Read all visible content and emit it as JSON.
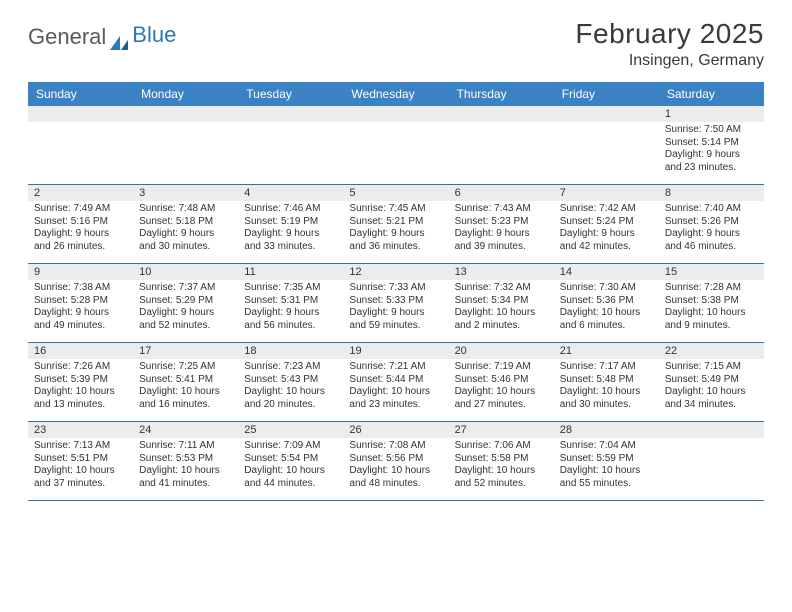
{
  "logo": {
    "part1": "General",
    "part2": "Blue"
  },
  "title": "February 2025",
  "location": "Insingen, Germany",
  "colors": {
    "header_bg": "#3b82c4",
    "header_text": "#ffffff",
    "daynum_bg": "#ececec",
    "week_border": "#3b6fa0",
    "text": "#333333",
    "logo_gray": "#5a5a5a",
    "logo_blue": "#2e77b8",
    "page_bg": "#ffffff"
  },
  "day_names": [
    "Sunday",
    "Monday",
    "Tuesday",
    "Wednesday",
    "Thursday",
    "Friday",
    "Saturday"
  ],
  "weeks": [
    [
      {
        "n": "",
        "sr": "",
        "ss": "",
        "dl": ""
      },
      {
        "n": "",
        "sr": "",
        "ss": "",
        "dl": ""
      },
      {
        "n": "",
        "sr": "",
        "ss": "",
        "dl": ""
      },
      {
        "n": "",
        "sr": "",
        "ss": "",
        "dl": ""
      },
      {
        "n": "",
        "sr": "",
        "ss": "",
        "dl": ""
      },
      {
        "n": "",
        "sr": "",
        "ss": "",
        "dl": ""
      },
      {
        "n": "1",
        "sr": "Sunrise: 7:50 AM",
        "ss": "Sunset: 5:14 PM",
        "dl": "Daylight: 9 hours and 23 minutes."
      }
    ],
    [
      {
        "n": "2",
        "sr": "Sunrise: 7:49 AM",
        "ss": "Sunset: 5:16 PM",
        "dl": "Daylight: 9 hours and 26 minutes."
      },
      {
        "n": "3",
        "sr": "Sunrise: 7:48 AM",
        "ss": "Sunset: 5:18 PM",
        "dl": "Daylight: 9 hours and 30 minutes."
      },
      {
        "n": "4",
        "sr": "Sunrise: 7:46 AM",
        "ss": "Sunset: 5:19 PM",
        "dl": "Daylight: 9 hours and 33 minutes."
      },
      {
        "n": "5",
        "sr": "Sunrise: 7:45 AM",
        "ss": "Sunset: 5:21 PM",
        "dl": "Daylight: 9 hours and 36 minutes."
      },
      {
        "n": "6",
        "sr": "Sunrise: 7:43 AM",
        "ss": "Sunset: 5:23 PM",
        "dl": "Daylight: 9 hours and 39 minutes."
      },
      {
        "n": "7",
        "sr": "Sunrise: 7:42 AM",
        "ss": "Sunset: 5:24 PM",
        "dl": "Daylight: 9 hours and 42 minutes."
      },
      {
        "n": "8",
        "sr": "Sunrise: 7:40 AM",
        "ss": "Sunset: 5:26 PM",
        "dl": "Daylight: 9 hours and 46 minutes."
      }
    ],
    [
      {
        "n": "9",
        "sr": "Sunrise: 7:38 AM",
        "ss": "Sunset: 5:28 PM",
        "dl": "Daylight: 9 hours and 49 minutes."
      },
      {
        "n": "10",
        "sr": "Sunrise: 7:37 AM",
        "ss": "Sunset: 5:29 PM",
        "dl": "Daylight: 9 hours and 52 minutes."
      },
      {
        "n": "11",
        "sr": "Sunrise: 7:35 AM",
        "ss": "Sunset: 5:31 PM",
        "dl": "Daylight: 9 hours and 56 minutes."
      },
      {
        "n": "12",
        "sr": "Sunrise: 7:33 AM",
        "ss": "Sunset: 5:33 PM",
        "dl": "Daylight: 9 hours and 59 minutes."
      },
      {
        "n": "13",
        "sr": "Sunrise: 7:32 AM",
        "ss": "Sunset: 5:34 PM",
        "dl": "Daylight: 10 hours and 2 minutes."
      },
      {
        "n": "14",
        "sr": "Sunrise: 7:30 AM",
        "ss": "Sunset: 5:36 PM",
        "dl": "Daylight: 10 hours and 6 minutes."
      },
      {
        "n": "15",
        "sr": "Sunrise: 7:28 AM",
        "ss": "Sunset: 5:38 PM",
        "dl": "Daylight: 10 hours and 9 minutes."
      }
    ],
    [
      {
        "n": "16",
        "sr": "Sunrise: 7:26 AM",
        "ss": "Sunset: 5:39 PM",
        "dl": "Daylight: 10 hours and 13 minutes."
      },
      {
        "n": "17",
        "sr": "Sunrise: 7:25 AM",
        "ss": "Sunset: 5:41 PM",
        "dl": "Daylight: 10 hours and 16 minutes."
      },
      {
        "n": "18",
        "sr": "Sunrise: 7:23 AM",
        "ss": "Sunset: 5:43 PM",
        "dl": "Daylight: 10 hours and 20 minutes."
      },
      {
        "n": "19",
        "sr": "Sunrise: 7:21 AM",
        "ss": "Sunset: 5:44 PM",
        "dl": "Daylight: 10 hours and 23 minutes."
      },
      {
        "n": "20",
        "sr": "Sunrise: 7:19 AM",
        "ss": "Sunset: 5:46 PM",
        "dl": "Daylight: 10 hours and 27 minutes."
      },
      {
        "n": "21",
        "sr": "Sunrise: 7:17 AM",
        "ss": "Sunset: 5:48 PM",
        "dl": "Daylight: 10 hours and 30 minutes."
      },
      {
        "n": "22",
        "sr": "Sunrise: 7:15 AM",
        "ss": "Sunset: 5:49 PM",
        "dl": "Daylight: 10 hours and 34 minutes."
      }
    ],
    [
      {
        "n": "23",
        "sr": "Sunrise: 7:13 AM",
        "ss": "Sunset: 5:51 PM",
        "dl": "Daylight: 10 hours and 37 minutes."
      },
      {
        "n": "24",
        "sr": "Sunrise: 7:11 AM",
        "ss": "Sunset: 5:53 PM",
        "dl": "Daylight: 10 hours and 41 minutes."
      },
      {
        "n": "25",
        "sr": "Sunrise: 7:09 AM",
        "ss": "Sunset: 5:54 PM",
        "dl": "Daylight: 10 hours and 44 minutes."
      },
      {
        "n": "26",
        "sr": "Sunrise: 7:08 AM",
        "ss": "Sunset: 5:56 PM",
        "dl": "Daylight: 10 hours and 48 minutes."
      },
      {
        "n": "27",
        "sr": "Sunrise: 7:06 AM",
        "ss": "Sunset: 5:58 PM",
        "dl": "Daylight: 10 hours and 52 minutes."
      },
      {
        "n": "28",
        "sr": "Sunrise: 7:04 AM",
        "ss": "Sunset: 5:59 PM",
        "dl": "Daylight: 10 hours and 55 minutes."
      },
      {
        "n": "",
        "sr": "",
        "ss": "",
        "dl": ""
      }
    ]
  ]
}
